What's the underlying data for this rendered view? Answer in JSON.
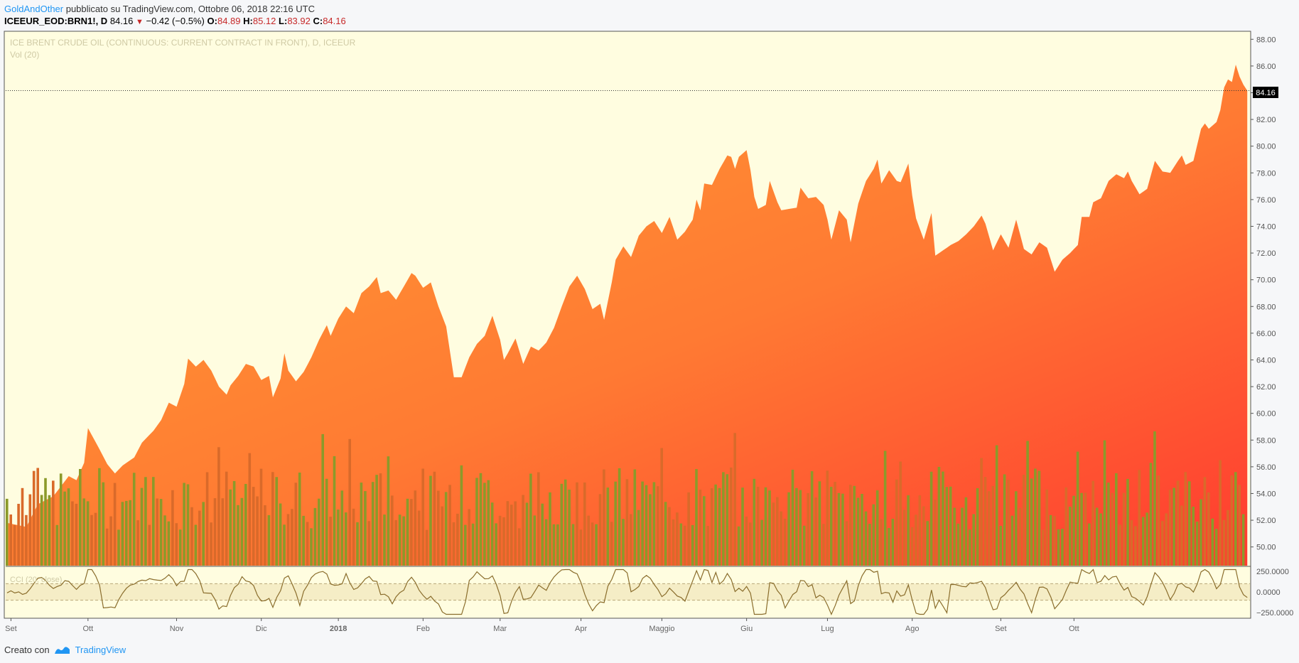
{
  "header": {
    "author": "GoldAndOther",
    "published": " pubblicato su TradingView.com, Ottobre 06, 2018 22:16 UTC"
  },
  "symbol": {
    "ticker": "ICEEUR_EOD:BRN1!, D",
    "last": "84.16",
    "change": "−0.42 (−0.5%)",
    "o_label": "O:",
    "o": "84.89",
    "h_label": "H:",
    "h": "85.12",
    "l_label": "L:",
    "l": "83.92",
    "c_label": "C:",
    "c": "84.16"
  },
  "chart_data": {
    "type": "area",
    "legend": {
      "main": "ICE BRENT CRUDE OIL (CONTINUOUS: CURRENT CONTRACT IN FRONT), D, ICEEUR",
      "volume": "Vol (20)",
      "cci": "CCI (20, close)"
    },
    "last_price_label": "84.16",
    "ylim": [
      48.6,
      88.6
    ],
    "y_ticks": [
      "50.00",
      "52.00",
      "54.00",
      "56.00",
      "58.00",
      "60.00",
      "62.00",
      "64.00",
      "66.00",
      "68.00",
      "70.00",
      "72.00",
      "74.00",
      "76.00",
      "78.00",
      "80.00",
      "82.00",
      "84.00",
      "86.00",
      "88.00"
    ],
    "x_ticks": [
      {
        "label": "Set",
        "day": 1
      },
      {
        "label": "Ott",
        "day": 21
      },
      {
        "label": "Nov",
        "day": 44
      },
      {
        "label": "Dic",
        "day": 66
      },
      {
        "label": "2018",
        "day": 86
      },
      {
        "label": "Feb",
        "day": 108
      },
      {
        "label": "Mar",
        "day": 128
      },
      {
        "label": "Apr",
        "day": 149
      },
      {
        "label": "Maggio",
        "day": 170
      },
      {
        "label": "Giu",
        "day": 192
      },
      {
        "label": "Lug",
        "day": 213
      },
      {
        "label": "Ago",
        "day": 235
      },
      {
        "label": "Set",
        "day": 258
      },
      {
        "label": "Ott",
        "day": 277
      }
    ],
    "price_keypoints": [
      [
        0,
        51.8
      ],
      [
        5,
        51.5
      ],
      [
        8,
        53.2
      ],
      [
        12,
        53.8
      ],
      [
        16,
        55.3
      ],
      [
        18,
        55.0
      ],
      [
        20,
        56.3
      ],
      [
        21,
        58.9
      ],
      [
        24,
        57.3
      ],
      [
        26,
        56.2
      ],
      [
        28,
        55.5
      ],
      [
        30,
        56.1
      ],
      [
        33,
        56.7
      ],
      [
        35,
        57.8
      ],
      [
        38,
        58.7
      ],
      [
        40,
        59.5
      ],
      [
        42,
        60.8
      ],
      [
        44,
        60.5
      ],
      [
        46,
        62.2
      ],
      [
        47,
        64.1
      ],
      [
        49,
        63.5
      ],
      [
        51,
        64.0
      ],
      [
        53,
        63.2
      ],
      [
        55,
        62.0
      ],
      [
        57,
        61.4
      ],
      [
        58,
        62.1
      ],
      [
        60,
        62.8
      ],
      [
        62,
        63.7
      ],
      [
        64,
        63.5
      ],
      [
        66,
        62.5
      ],
      [
        68,
        62.8
      ],
      [
        69,
        61.2
      ],
      [
        71,
        62.6
      ],
      [
        72,
        64.5
      ],
      [
        73,
        63.2
      ],
      [
        75,
        62.4
      ],
      [
        77,
        63.1
      ],
      [
        79,
        64.2
      ],
      [
        81,
        65.5
      ],
      [
        83,
        66.6
      ],
      [
        84,
        65.8
      ],
      [
        86,
        67.1
      ],
      [
        88,
        68.0
      ],
      [
        90,
        67.5
      ],
      [
        92,
        69.0
      ],
      [
        94,
        69.5
      ],
      [
        96,
        70.2
      ],
      [
        97,
        69.0
      ],
      [
        99,
        69.2
      ],
      [
        101,
        68.5
      ],
      [
        103,
        69.5
      ],
      [
        105,
        70.5
      ],
      [
        106,
        70.3
      ],
      [
        108,
        69.4
      ],
      [
        110,
        69.8
      ],
      [
        112,
        68.0
      ],
      [
        114,
        66.5
      ],
      [
        116,
        62.7
      ],
      [
        118,
        62.7
      ],
      [
        120,
        64.2
      ],
      [
        122,
        65.2
      ],
      [
        124,
        65.8
      ],
      [
        126,
        67.3
      ],
      [
        128,
        65.5
      ],
      [
        129,
        64.0
      ],
      [
        130,
        64.5
      ],
      [
        132,
        65.6
      ],
      [
        134,
        63.7
      ],
      [
        136,
        65.0
      ],
      [
        138,
        64.7
      ],
      [
        140,
        65.3
      ],
      [
        142,
        66.4
      ],
      [
        144,
        68.0
      ],
      [
        146,
        69.5
      ],
      [
        148,
        70.3
      ],
      [
        150,
        69.3
      ],
      [
        152,
        67.8
      ],
      [
        154,
        68.2
      ],
      [
        155,
        67.0
      ],
      [
        157,
        69.8
      ],
      [
        158,
        71.5
      ],
      [
        160,
        72.5
      ],
      [
        162,
        71.7
      ],
      [
        164,
        73.3
      ],
      [
        166,
        74.0
      ],
      [
        168,
        74.4
      ],
      [
        170,
        73.5
      ],
      [
        172,
        74.7
      ],
      [
        174,
        73.0
      ],
      [
        176,
        73.6
      ],
      [
        178,
        74.5
      ],
      [
        179,
        76.0
      ],
      [
        180,
        75.2
      ],
      [
        181,
        77.2
      ],
      [
        183,
        77.1
      ],
      [
        185,
        78.3
      ],
      [
        187,
        79.3
      ],
      [
        188,
        79.2
      ],
      [
        189,
        78.3
      ],
      [
        190,
        79.2
      ],
      [
        192,
        79.7
      ],
      [
        193,
        78.2
      ],
      [
        194,
        76.2
      ],
      [
        195,
        75.3
      ],
      [
        197,
        75.6
      ],
      [
        198,
        77.4
      ],
      [
        200,
        75.8
      ],
      [
        201,
        75.2
      ],
      [
        203,
        75.3
      ],
      [
        205,
        75.4
      ],
      [
        206,
        76.9
      ],
      [
        208,
        76.1
      ],
      [
        210,
        76.2
      ],
      [
        212,
        75.6
      ],
      [
        213,
        74.5
      ],
      [
        214,
        73.0
      ],
      [
        216,
        75.2
      ],
      [
        218,
        74.5
      ],
      [
        219,
        72.8
      ],
      [
        221,
        75.7
      ],
      [
        223,
        77.4
      ],
      [
        225,
        78.3
      ],
      [
        226,
        79.0
      ],
      [
        227,
        77.2
      ],
      [
        229,
        78.2
      ],
      [
        231,
        77.4
      ],
      [
        232,
        77.3
      ],
      [
        234,
        78.7
      ],
      [
        235,
        76.3
      ],
      [
        236,
        74.6
      ],
      [
        238,
        73.0
      ],
      [
        240,
        75.0
      ],
      [
        241,
        71.8
      ],
      [
        243,
        72.2
      ],
      [
        245,
        72.6
      ],
      [
        247,
        72.9
      ],
      [
        249,
        73.4
      ],
      [
        251,
        74.0
      ],
      [
        253,
        74.8
      ],
      [
        254,
        74.2
      ],
      [
        256,
        72.2
      ],
      [
        258,
        73.4
      ],
      [
        260,
        72.4
      ],
      [
        262,
        74.5
      ],
      [
        264,
        72.3
      ],
      [
        266,
        71.9
      ],
      [
        268,
        72.8
      ],
      [
        270,
        72.4
      ],
      [
        272,
        70.6
      ],
      [
        274,
        71.5
      ],
      [
        276,
        72.0
      ],
      [
        278,
        72.6
      ],
      [
        279,
        74.7
      ],
      [
        281,
        74.7
      ],
      [
        282,
        75.8
      ],
      [
        284,
        76.1
      ],
      [
        286,
        77.4
      ],
      [
        288,
        77.9
      ],
      [
        290,
        77.6
      ],
      [
        291,
        78.1
      ],
      [
        292,
        77.4
      ],
      [
        294,
        76.4
      ],
      [
        296,
        76.8
      ],
      [
        298,
        78.9
      ],
      [
        300,
        78.1
      ],
      [
        302,
        78.0
      ],
      [
        304,
        78.9
      ],
      [
        305,
        79.3
      ],
      [
        306,
        78.6
      ],
      [
        308,
        78.9
      ],
      [
        310,
        81.3
      ],
      [
        311,
        81.7
      ],
      [
        312,
        81.3
      ],
      [
        314,
        81.8
      ],
      [
        315,
        82.7
      ],
      [
        316,
        84.4
      ],
      [
        317,
        85.0
      ],
      [
        318,
        84.8
      ],
      [
        319,
        86.1
      ],
      [
        320,
        85.2
      ],
      [
        321,
        84.6
      ],
      [
        322,
        84.16
      ]
    ],
    "volume_series": [
      {
        "name": "up",
        "color": "#8b9a2a"
      },
      {
        "name": "down",
        "color": "#d96a2a"
      }
    ],
    "cci": {
      "ticks": [
        "250.0000",
        "0.0000",
        "−250.0000"
      ],
      "ylim": [
        -300,
        300
      ],
      "bands": [
        100,
        -100
      ]
    }
  },
  "footer": {
    "created": "Creato con",
    "brand": "TradingView"
  }
}
